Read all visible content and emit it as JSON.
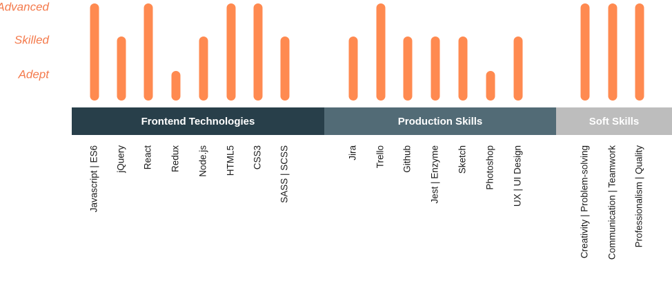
{
  "chart_data": {
    "type": "bar",
    "title": "",
    "levels": [
      "Adept",
      "Skilled",
      "Advanced"
    ],
    "bar_color": "#ff8a50",
    "label_color": "#f47a4c",
    "groups": [
      {
        "name": "Frontend Technologies",
        "color": "#283f4a",
        "categories": [
          "Javascript | ES6",
          "jQuery",
          "React",
          "Redux",
          "Node.js",
          "HTML5",
          "CSS3",
          "SASS | SCSS"
        ],
        "values": [
          3,
          2,
          3,
          1,
          2,
          3,
          3,
          2
        ]
      },
      {
        "name": "Production Skills",
        "color": "#526b76",
        "categories": [
          "Jira",
          "Trello",
          "Github",
          "Jest | Enzyme",
          "Sketch",
          "Photoshop",
          "UX | UI Design"
        ],
        "values": [
          2,
          3,
          2,
          2,
          2,
          1,
          2
        ]
      },
      {
        "name": "Soft Skills",
        "color": "#bdbdbd",
        "categories": [
          "Creativity | Problem-solving",
          "Communication | Teamwork",
          "Professionalism | Quality"
        ],
        "values": [
          3,
          3,
          3
        ]
      }
    ]
  }
}
